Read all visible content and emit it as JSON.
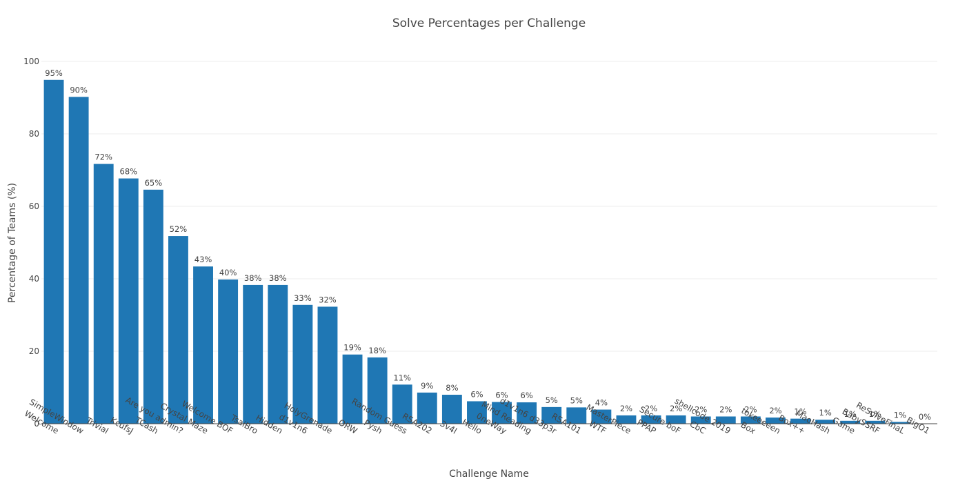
{
  "chart_data": {
    "type": "bar",
    "title": "Solve Percentages per Challenge",
    "xlabel": "Challenge Name",
    "ylabel": "Percentage of Teams (%)",
    "ylim": [
      0,
      100
    ],
    "yticks": [
      0,
      20,
      40,
      60,
      80,
      100
    ],
    "bar_color": "#1f77b4",
    "grid": true,
    "categories": [
      "Welcome",
      "SimpleWindow",
      "Trivial",
      "KcufsJ",
      "TCash",
      "Are you admin?",
      "Crystal Maze",
      "Welcome BOF",
      "TsaiBro",
      "Hidden",
      "d1v1n6",
      "HolyGrenade",
      "ORW",
      "Pysh",
      "Random Guess",
      "RSA202",
      "3v4l",
      "Hello",
      "0neWay",
      "Mind Reading",
      "d1v1n6 d33p3r",
      "RSA101",
      "WTF",
      "MasterPiece",
      "PPAP",
      "Secure boF",
      "CbC",
      "shellcode 2019",
      "Box",
      "tokeeeeen",
      "Box++",
      "MaoHash",
      "Game",
      "BabySSRF",
      "ReSolveFinaL",
      "BigO1"
    ],
    "values": [
      94.9,
      90.2,
      71.7,
      67.7,
      64.6,
      51.8,
      43.4,
      39.8,
      38.3,
      38.3,
      32.8,
      32.3,
      19.1,
      18.3,
      10.8,
      8.6,
      8.0,
      6.2,
      6.0,
      5.9,
      4.6,
      4.5,
      3.9,
      2.3,
      2.3,
      2.3,
      2.0,
      2.0,
      2.0,
      1.7,
      1.4,
      1.1,
      0.8,
      0.8,
      0.5,
      0.0
    ],
    "labels": [
      "95%",
      "90%",
      "72%",
      "68%",
      "65%",
      "52%",
      "43%",
      "40%",
      "38%",
      "38%",
      "33%",
      "32%",
      "19%",
      "18%",
      "11%",
      "9%",
      "8%",
      "6%",
      "6%",
      "6%",
      "5%",
      "5%",
      "4%",
      "2%",
      "2%",
      "2%",
      "2%",
      "2%",
      "2%",
      "2%",
      "1%",
      "1%",
      "1%",
      "1%",
      "1%",
      "0%"
    ]
  }
}
